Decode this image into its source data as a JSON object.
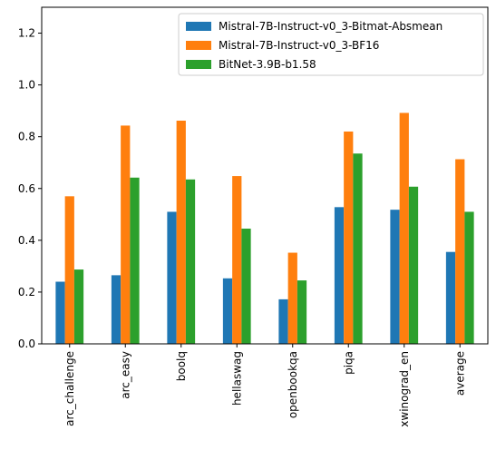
{
  "chart_data": {
    "type": "bar",
    "title": "",
    "xlabel": "",
    "ylabel": "",
    "ylim": [
      0,
      1.3
    ],
    "yticks": [
      "0.0",
      "0.2",
      "0.4",
      "0.6",
      "0.8",
      "1.0",
      "1.2"
    ],
    "ytick_values": [
      0,
      0.2,
      0.4,
      0.6,
      0.8,
      1.0,
      1.2
    ],
    "grid": false,
    "legend_position": "top-right",
    "categories": [
      "arc_challenge",
      "arc_easy",
      "boolq",
      "hellaswag",
      "openbookqa",
      "piqa",
      "xwinograd_en",
      "average"
    ],
    "series": [
      {
        "name": "Mistral-7B-Instruct-v0_3-Bitmat-Absmean",
        "color": "#1f77b4",
        "values": [
          0.24,
          0.265,
          0.51,
          0.253,
          0.172,
          0.528,
          0.518,
          0.355
        ]
      },
      {
        "name": "Mistral-7B-Instruct-v0_3-BF16",
        "color": "#ff7f0e",
        "values": [
          0.57,
          0.843,
          0.862,
          0.648,
          0.352,
          0.82,
          0.892,
          0.713
        ]
      },
      {
        "name": "BitNet-3.9B-b1.58",
        "color": "#2ca02c",
        "values": [
          0.287,
          0.642,
          0.635,
          0.445,
          0.245,
          0.735,
          0.607,
          0.51
        ]
      }
    ]
  }
}
